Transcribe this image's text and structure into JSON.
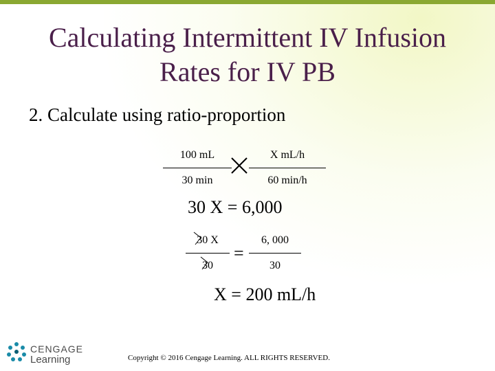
{
  "slide": {
    "title_line1": "Calculating Intermittent IV Infusion",
    "title_line2": "Rates for IV PB",
    "step_label": "2.  Calculate using ratio-proportion"
  },
  "equations": {
    "ratio_left_num": "100 mL",
    "ratio_left_den": "30 min",
    "ratio_right_num": "X mL/h",
    "ratio_right_den": "60 min/h",
    "cross_product": "30 X = 6,000",
    "div_left_num": "30 X",
    "div_left_den": "30",
    "equals": "=",
    "div_right_num": "6, 000",
    "div_right_den": "30",
    "result": "X = 200 mL/h"
  },
  "footer": {
    "brand_line1": "CENGAGE",
    "brand_line2": "Learning",
    "copyright": "Copyright © 2016 Cengage Learning. ALL RIGHTS RESERVED."
  },
  "colors": {
    "title": "#4a1f4a",
    "accent_bar": "#8aa832",
    "logo_teal": "#1a8ba8"
  },
  "icons": {
    "logo": "cengage-star-logo"
  }
}
